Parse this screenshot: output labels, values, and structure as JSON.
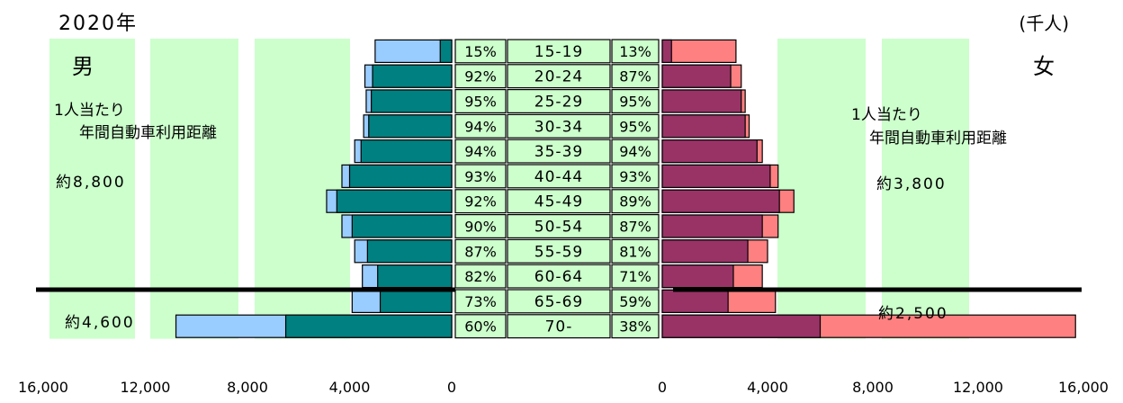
{
  "title": "2020年",
  "unit": "(千人)",
  "sexes": {
    "male": "男",
    "female": "女"
  },
  "male_note": {
    "line1": "1人当たり",
    "line2": "年間自動車利用距離",
    "upper_value": "約8,800",
    "lower_value": "約4,600"
  },
  "female_note": {
    "line1": "1人当たり",
    "line2": "年間自動車利用距離",
    "upper_value": "約3,800",
    "lower_value": "約2,500"
  },
  "colors": {
    "male_total": "#99ccff",
    "male_drivers": "#008080",
    "female_total": "#ff8080",
    "female_drivers": "#993366",
    "band": "#ccffcc",
    "center_box": "#ccffcc"
  },
  "chart_data": {
    "type": "bar",
    "orientation": "horizontal-pyramid",
    "categories": [
      "15-19",
      "20-24",
      "25-29",
      "30-34",
      "35-39",
      "40-44",
      "45-49",
      "50-54",
      "55-59",
      "60-64",
      "65-69",
      "70-"
    ],
    "male_pct": [
      "15%",
      "92%",
      "95%",
      "94%",
      "94%",
      "93%",
      "92%",
      "90%",
      "87%",
      "82%",
      "73%",
      "60%"
    ],
    "female_pct": [
      "13%",
      "87%",
      "95%",
      "95%",
      "94%",
      "93%",
      "89%",
      "87%",
      "81%",
      "71%",
      "59%",
      "38%"
    ],
    "series": [
      {
        "side": "male",
        "kind": "total",
        "values": [
          3000,
          3400,
          3350,
          3450,
          3800,
          4300,
          4900,
          4300,
          3800,
          3500,
          3900,
          10800
        ]
      },
      {
        "side": "male",
        "kind": "drivers",
        "values": [
          450,
          3100,
          3150,
          3250,
          3550,
          4000,
          4500,
          3900,
          3300,
          2900,
          2800,
          6500
        ]
      },
      {
        "side": "female",
        "kind": "total",
        "values": [
          2800,
          3000,
          3150,
          3300,
          3800,
          4400,
          5000,
          4400,
          4000,
          3800,
          4300,
          15700
        ]
      },
      {
        "side": "female",
        "kind": "drivers",
        "values": [
          350,
          2600,
          3000,
          3150,
          3600,
          4100,
          4450,
          3800,
          3250,
          2700,
          2500,
          6000
        ]
      }
    ],
    "x_ticks_male": [
      "16,000",
      "12,000",
      "8,000",
      "4,000",
      "0"
    ],
    "x_ticks_female": [
      "0",
      "4,000",
      "8,000",
      "12,000",
      "16,000"
    ],
    "xlim": [
      0,
      16000
    ],
    "grid": false
  }
}
